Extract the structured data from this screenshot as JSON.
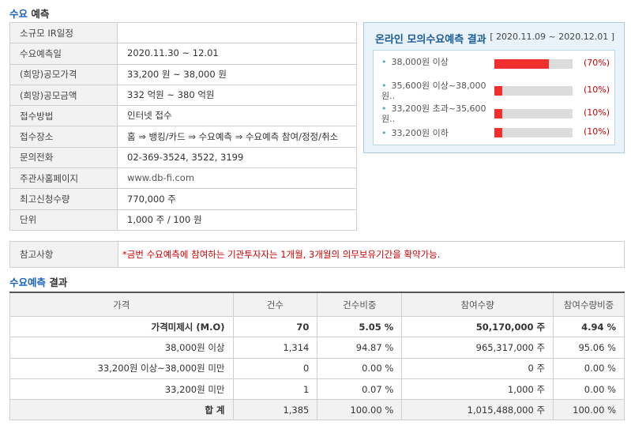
{
  "section1": {
    "title_hl": "수요",
    "title_rest": "예측"
  },
  "info_rows": [
    {
      "label": "소규모 IR일정",
      "value": ""
    },
    {
      "label": "수요예측일",
      "value": "2020.11.30 ~ 12.01"
    },
    {
      "label": "(희망)공모가격",
      "value": "33,200 원 ~ 38,000 원"
    },
    {
      "label": "(희망)공모금액",
      "value": "332 억원 ~ 380 억원"
    },
    {
      "label": "접수방법",
      "value": "인터넷 접수"
    },
    {
      "label": "접수장소",
      "value": "홈 ⇒ 뱅킹/카드 ⇒ 수요예측 ⇒ 수요예측 참여/정정/취소"
    },
    {
      "label": "문의전화",
      "value": "02-369-3524, 3522, 3199"
    },
    {
      "label": "주관사홈페이지",
      "value": "www.db-fi.com"
    },
    {
      "label": "최고신청수량",
      "value": "770,000 주"
    },
    {
      "label": "단위",
      "value": "1,000 주 / 100 원"
    }
  ],
  "mock_panel": {
    "title": "온라인 모의수요예측 결과",
    "date_range": "[ 2020.11.09 ~ 2020.12.01 ]",
    "items": [
      {
        "label": "38,000원 이상",
        "percent_text": "(70%)",
        "percent": 70
      },
      {
        "label": "35,600원 이상~38,000원..",
        "percent_text": "(10%)",
        "percent": 10
      },
      {
        "label": "33,200원 초과~35,600원..",
        "percent_text": "(10%)",
        "percent": 10
      },
      {
        "label": "33,200원 이하",
        "percent_text": "(10%)",
        "percent": 10
      }
    ],
    "bar_color": "#f22f2f"
  },
  "note": {
    "label": "참고사항",
    "text": "*금번 수요예측에 참여하는 기관투자자는 1개월, 3개월의 의무보유기간을 확약가능."
  },
  "section2": {
    "title_hl": "수요예측",
    "title_rest": " 결과"
  },
  "result": {
    "headers": [
      "가격",
      "건수",
      "건수비중",
      "참여수량",
      "참여수량비중"
    ],
    "rows": [
      [
        "가격미제시 (M.O)",
        "70",
        "5.05 %",
        "50,170,000 주",
        "4.94 %"
      ],
      [
        "38,000원 이상",
        "1,314",
        "94.87 %",
        "965,317,000 주",
        "95.06 %"
      ],
      [
        "33,200원 이상~38,000원 미만",
        "0",
        "0.00 %",
        "0 주",
        "0.00 %"
      ],
      [
        "33,200원 미만",
        "1",
        "0.07 %",
        "1,000 주",
        "0.00 %"
      ],
      [
        "합 계",
        "1,385",
        "100.00 %",
        "1,015,488,000 주",
        "100.00 %"
      ]
    ]
  }
}
